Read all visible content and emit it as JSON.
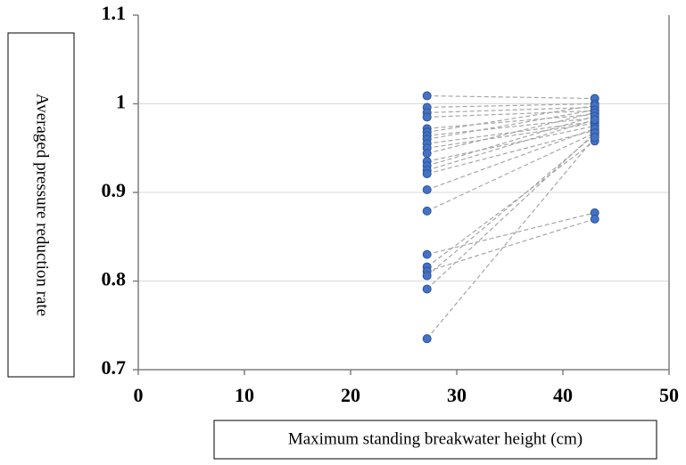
{
  "chart_data": {
    "type": "scatter",
    "xlabel": "Maximum standing breakwater height (cm)",
    "ylabel": "Averaged pressure reduction rate",
    "xlim": [
      0,
      50
    ],
    "ylim": [
      0.7,
      1.1
    ],
    "xticks": [
      "0",
      "10",
      "20",
      "30",
      "40",
      "50"
    ],
    "yticks": [
      "0.7",
      "0.8",
      "0.9",
      "1",
      "1.1"
    ],
    "grid": "horizontal",
    "legend": "none",
    "marker_color": "#4472c4",
    "line_color": "#a6a6a6",
    "series": [
      {
        "x": [
          27.2,
          43
        ],
        "y": [
          1.009,
          1.006
        ]
      },
      {
        "x": [
          27.2,
          43
        ],
        "y": [
          0.996,
          1.0
        ]
      },
      {
        "x": [
          27.2,
          43
        ],
        "y": [
          0.99,
          0.996
        ]
      },
      {
        "x": [
          27.2,
          43
        ],
        "y": [
          0.985,
          0.992
        ]
      },
      {
        "x": [
          27.2,
          43
        ],
        "y": [
          0.972,
          0.988
        ]
      },
      {
        "x": [
          27.2,
          43
        ],
        "y": [
          0.968,
          0.998
        ]
      },
      {
        "x": [
          27.2,
          43
        ],
        "y": [
          0.964,
          0.984
        ]
      },
      {
        "x": [
          27.2,
          43
        ],
        "y": [
          0.96,
          0.993
        ]
      },
      {
        "x": [
          27.2,
          43
        ],
        "y": [
          0.955,
          0.98
        ]
      },
      {
        "x": [
          27.2,
          43
        ],
        "y": [
          0.95,
          0.978
        ]
      },
      {
        "x": [
          27.2,
          43
        ],
        "y": [
          0.944,
          0.99
        ]
      },
      {
        "x": [
          27.2,
          43
        ],
        "y": [
          0.935,
          0.975
        ]
      },
      {
        "x": [
          27.2,
          43
        ],
        "y": [
          0.93,
          0.986
        ]
      },
      {
        "x": [
          27.2,
          43
        ],
        "y": [
          0.925,
          0.982
        ]
      },
      {
        "x": [
          27.2,
          43
        ],
        "y": [
          0.921,
          0.97
        ]
      },
      {
        "x": [
          27.2,
          43
        ],
        "y": [
          0.903,
          0.972
        ]
      },
      {
        "x": [
          27.2,
          43
        ],
        "y": [
          0.879,
          0.967
        ]
      },
      {
        "x": [
          27.2,
          43
        ],
        "y": [
          0.83,
          0.877
        ]
      },
      {
        "x": [
          27.2,
          43
        ],
        "y": [
          0.816,
          0.958
        ]
      },
      {
        "x": [
          27.2,
          43
        ],
        "y": [
          0.811,
          0.87
        ]
      },
      {
        "x": [
          27.2,
          43
        ],
        "y": [
          0.806,
          0.965
        ]
      },
      {
        "x": [
          27.2,
          43
        ],
        "y": [
          0.791,
          0.967
        ]
      },
      {
        "x": [
          27.2,
          43
        ],
        "y": [
          0.735,
          0.962
        ]
      }
    ]
  }
}
